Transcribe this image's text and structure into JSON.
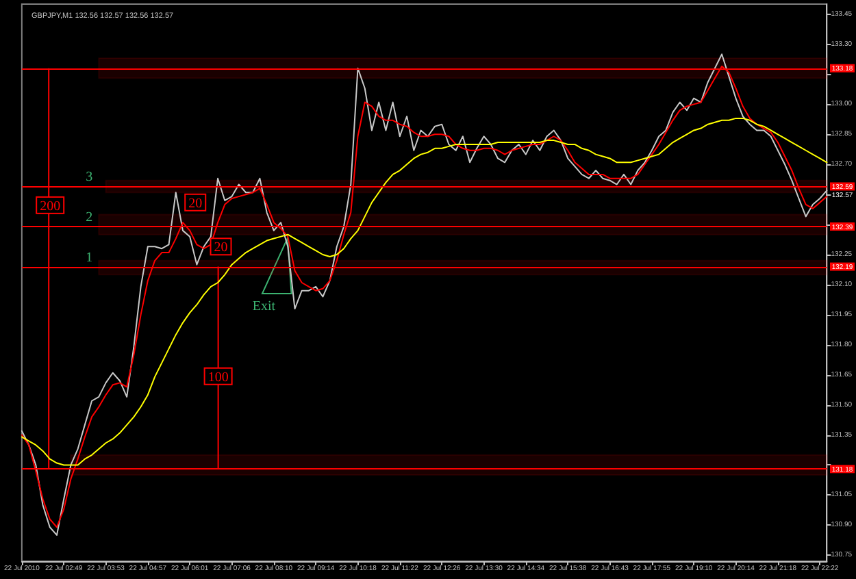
{
  "chart_data": {
    "type": "line",
    "title": "GBPJPY,M1 132.56 132.57 132.56 132.57",
    "categories": [
      "22 Jul 2010",
      null,
      null,
      null,
      null,
      null,
      "22 Jul 02:49",
      null,
      null,
      null,
      null,
      null,
      "22 Jul 03:53",
      null,
      null,
      null,
      null,
      null,
      "22 Jul 04:57",
      null,
      null,
      null,
      null,
      null,
      "22 Jul 06:01",
      null,
      null,
      null,
      null,
      null,
      "22 Jul 07:06",
      null,
      null,
      null,
      null,
      null,
      "22 Jul 08:10",
      null,
      null,
      null,
      null,
      null,
      "22 Jul 09:14",
      null,
      null,
      null,
      null,
      null,
      "22 Jul 10:18",
      null,
      null,
      null,
      null,
      null,
      "22 Jul 11:22",
      null,
      null,
      null,
      null,
      null,
      "22 Jul 12:26",
      null,
      null,
      null,
      null,
      null,
      "22 Jul 13:30",
      null,
      null,
      null,
      null,
      null,
      "22 Jul 14:34",
      null,
      null,
      null,
      null,
      null,
      "22 Jul 15:38",
      null,
      null,
      null,
      null,
      null,
      "22 Jul 16:43",
      null,
      null,
      null,
      null,
      null,
      "22 Jul 17:55",
      null,
      null,
      null,
      null,
      null,
      "22 Jul 19:10",
      null,
      null,
      null,
      null,
      null,
      "22 Jul 20:14",
      null,
      null,
      null,
      null,
      null,
      "22 Jul 21:18",
      null,
      null,
      null,
      null,
      null,
      "22 Jul 22:22",
      null
    ],
    "series": [
      {
        "color": "#c8c8c8",
        "values": [
          131.37,
          131.3,
          131.2,
          131.0,
          130.89,
          130.85,
          131.03,
          131.2,
          131.28,
          131.4,
          131.52,
          131.54,
          131.61,
          131.66,
          131.62,
          131.54,
          131.79,
          132.09,
          132.29,
          132.29,
          132.28,
          132.3,
          132.56,
          132.37,
          132.34,
          132.2,
          132.29,
          132.34,
          132.63,
          132.52,
          132.54,
          132.6,
          132.56,
          132.56,
          132.63,
          132.46,
          132.37,
          132.41,
          132.29,
          131.98,
          132.07,
          132.07,
          132.09,
          132.04,
          132.12,
          132.29,
          132.39,
          132.6,
          133.18,
          133.08,
          132.87,
          133.01,
          132.87,
          133.01,
          132.84,
          132.94,
          132.77,
          132.87,
          132.84,
          132.89,
          132.9,
          132.8,
          132.77,
          132.84,
          132.71,
          132.78,
          132.84,
          132.8,
          132.73,
          132.71,
          132.77,
          132.8,
          132.75,
          132.82,
          132.77,
          132.84,
          132.87,
          132.82,
          132.73,
          132.69,
          132.65,
          132.63,
          132.67,
          132.63,
          132.62,
          132.6,
          132.65,
          132.6,
          132.67,
          132.71,
          132.77,
          132.84,
          132.87,
          132.96,
          133.01,
          132.97,
          133.03,
          133.01,
          133.11,
          133.18,
          133.25,
          133.14,
          133.03,
          132.94,
          132.9,
          132.87,
          132.87,
          132.84,
          132.77,
          132.7,
          132.62,
          132.53,
          132.44,
          132.5,
          132.53,
          132.57
        ]
      },
      {
        "color": "#ff0000",
        "values": [
          131.35,
          131.3,
          131.17,
          131.03,
          130.93,
          130.89,
          130.98,
          131.13,
          131.23,
          131.34,
          131.44,
          131.49,
          131.55,
          131.6,
          131.61,
          131.59,
          131.75,
          131.95,
          132.12,
          132.22,
          132.26,
          132.26,
          132.33,
          132.41,
          132.37,
          132.3,
          132.28,
          132.3,
          132.41,
          132.5,
          132.53,
          132.54,
          132.55,
          132.56,
          132.58,
          132.5,
          132.41,
          132.38,
          132.34,
          132.17,
          132.11,
          132.09,
          132.07,
          132.08,
          132.12,
          132.22,
          132.35,
          132.46,
          132.84,
          133.01,
          132.99,
          132.94,
          132.92,
          132.92,
          132.9,
          132.89,
          132.86,
          132.84,
          132.84,
          132.85,
          132.85,
          132.84,
          132.8,
          132.78,
          132.77,
          132.77,
          132.78,
          132.78,
          132.77,
          132.75,
          132.77,
          132.78,
          132.79,
          132.8,
          132.8,
          132.82,
          132.84,
          132.82,
          132.77,
          132.71,
          132.68,
          132.65,
          132.65,
          132.65,
          132.63,
          132.63,
          132.63,
          132.63,
          132.65,
          132.7,
          132.75,
          132.8,
          132.86,
          132.92,
          132.97,
          132.99,
          133.0,
          133.01,
          133.07,
          133.13,
          133.19,
          133.16,
          133.08,
          132.99,
          132.93,
          132.9,
          132.88,
          132.86,
          132.81,
          132.74,
          132.67,
          132.58,
          132.5,
          132.48,
          132.51,
          132.54
        ]
      },
      {
        "color": "#ffff00",
        "values": [
          131.34,
          131.32,
          131.3,
          131.27,
          131.23,
          131.21,
          131.2,
          131.2,
          131.2,
          131.23,
          131.25,
          131.28,
          131.31,
          131.33,
          131.36,
          131.4,
          131.44,
          131.49,
          131.55,
          131.64,
          131.71,
          131.78,
          131.85,
          131.91,
          131.96,
          132.0,
          132.05,
          132.09,
          132.11,
          132.15,
          132.2,
          132.23,
          132.26,
          132.28,
          132.3,
          132.32,
          132.33,
          132.34,
          132.35,
          132.33,
          132.31,
          132.29,
          132.27,
          132.25,
          132.24,
          132.25,
          132.28,
          132.33,
          132.37,
          132.44,
          132.51,
          132.56,
          132.61,
          132.65,
          132.67,
          132.7,
          132.73,
          132.75,
          132.76,
          132.78,
          132.78,
          132.79,
          132.8,
          132.8,
          132.8,
          132.8,
          132.8,
          132.8,
          132.81,
          132.81,
          132.81,
          132.81,
          132.81,
          132.81,
          132.81,
          132.82,
          132.82,
          132.81,
          132.8,
          132.8,
          132.78,
          132.77,
          132.75,
          132.74,
          132.73,
          132.71,
          132.71,
          132.71,
          132.72,
          132.73,
          132.74,
          132.75,
          132.78,
          132.81,
          132.83,
          132.85,
          132.87,
          132.88,
          132.9,
          132.91,
          132.92,
          132.92,
          132.93,
          132.93,
          132.92,
          132.9,
          132.89,
          132.87,
          132.85,
          132.83,
          132.81,
          132.79,
          132.77,
          132.75,
          132.73,
          132.71
        ]
      }
    ],
    "ylim": [
      130.72,
      133.5
    ],
    "yticks": [
      {
        "value": 130.75,
        "label": "130.75"
      },
      {
        "value": 130.9,
        "label": "130.90"
      },
      {
        "value": 131.05,
        "label": "131.05"
      },
      {
        "value": 131.2,
        "label": null
      },
      {
        "value": 131.35,
        "label": "131.35"
      },
      {
        "value": 131.5,
        "label": "131.50"
      },
      {
        "value": 131.65,
        "label": "131.65"
      },
      {
        "value": 131.8,
        "label": "131.80"
      },
      {
        "value": 131.95,
        "label": "131.95"
      },
      {
        "value": 132.1,
        "label": "132.10"
      },
      {
        "value": 132.25,
        "label": "132.25"
      },
      {
        "value": 132.4,
        "label": null
      },
      {
        "value": 132.55,
        "label": null
      },
      {
        "value": 132.7,
        "label": "132.70"
      },
      {
        "value": 132.85,
        "label": "132.85"
      },
      {
        "value": 133.0,
        "label": "133.00"
      },
      {
        "value": 133.15,
        "label": null
      },
      {
        "value": 133.3,
        "label": "133.30"
      },
      {
        "value": 133.45,
        "label": "133.45"
      }
    ],
    "ref_lines": [
      {
        "axis": "y",
        "value": 133.18,
        "label": "133.18",
        "color": "#ff0000"
      },
      {
        "axis": "y",
        "value": 132.59,
        "label": "132.59",
        "color": "#ff0000"
      },
      {
        "axis": "y",
        "value": 132.39,
        "label": "132.39",
        "color": "#ff0000"
      },
      {
        "axis": "y",
        "value": 132.19,
        "label": "132.19",
        "color": "#ff0000"
      },
      {
        "axis": "y",
        "value": 131.18,
        "label": "131.18",
        "color": "#ff0000"
      }
    ],
    "bands": [
      {
        "axis": "y",
        "from": 133.13,
        "to": 133.23,
        "color": "#ff0000"
      },
      {
        "axis": "y",
        "from": 132.56,
        "to": 132.62,
        "color": "#ff0000"
      },
      {
        "axis": "y",
        "from": 132.35,
        "to": 132.45,
        "color": "#ff0000"
      },
      {
        "axis": "y",
        "from": 132.15,
        "to": 132.22,
        "color": "#ff0000"
      },
      {
        "axis": "y",
        "from": 131.15,
        "to": 131.25,
        "color": "#ff0000"
      }
    ],
    "annotations": [
      "200",
      "20",
      {
        "text": "20",
        "y": 132.29
      },
      "100",
      "Exit",
      "132.57",
      {
        "text": "3",
        "y": 132.59
      },
      {
        "text": "2",
        "y": 132.39
      },
      {
        "text": "1",
        "y": 132.19
      }
    ]
  }
}
